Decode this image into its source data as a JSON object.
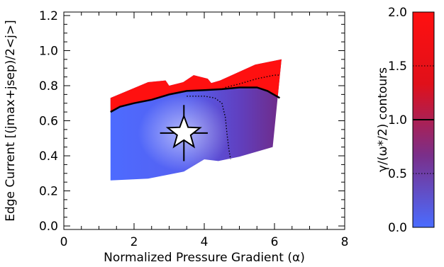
{
  "chart_data": {
    "type": "heatmap",
    "xlabel": "Normalized Pressure Gradient (α)",
    "ylabel": "Edge Current [(jmax+jsep)/2<j>]",
    "xlim": [
      0,
      8
    ],
    "ylim": [
      -0.02,
      1.22
    ],
    "xticks": [
      "0",
      "2",
      "4",
      "6",
      "8"
    ],
    "yticks": [
      "0.0",
      "0.2",
      "0.4",
      "0.6",
      "0.8",
      "1.0",
      "1.2"
    ],
    "grid": false,
    "colorbar": {
      "label": "γ/(ω*/2) contours",
      "range": [
        0,
        2
      ],
      "ticks": [
        "0.0",
        "0.5",
        "1.0",
        "1.5",
        "2.0"
      ],
      "colors": [
        "#4a6cff",
        "#7a2f8a",
        "#e0101a",
        "#ff1010"
      ],
      "contour_styles": {
        "0.5": "dotted",
        "1.0": "solid",
        "1.5": "dotted"
      }
    },
    "region_outline": [
      {
        "x": 1.33,
        "y": 0.26
      },
      {
        "x": 2.4,
        "y": 0.27
      },
      {
        "x": 3.42,
        "y": 0.31
      },
      {
        "x": 4.0,
        "y": 0.38
      },
      {
        "x": 4.4,
        "y": 0.37
      },
      {
        "x": 5.0,
        "y": 0.395
      },
      {
        "x": 5.95,
        "y": 0.45
      },
      {
        "x": 6.2,
        "y": 0.95
      },
      {
        "x": 5.45,
        "y": 0.92
      },
      {
        "x": 4.45,
        "y": 0.83
      },
      {
        "x": 4.2,
        "y": 0.815
      },
      {
        "x": 4.1,
        "y": 0.84
      },
      {
        "x": 3.7,
        "y": 0.86
      },
      {
        "x": 3.4,
        "y": 0.82
      },
      {
        "x": 3.0,
        "y": 0.8
      },
      {
        "x": 2.9,
        "y": 0.83
      },
      {
        "x": 2.4,
        "y": 0.82
      },
      {
        "x": 1.33,
        "y": 0.73
      }
    ],
    "unstable_region_gamma": 2.0,
    "contours": [
      {
        "gamma": 1.0,
        "style": "solid",
        "points": [
          {
            "x": 1.33,
            "y": 0.65
          },
          {
            "x": 1.6,
            "y": 0.68
          },
          {
            "x": 2.0,
            "y": 0.7
          },
          {
            "x": 2.5,
            "y": 0.72
          },
          {
            "x": 3.0,
            "y": 0.75
          },
          {
            "x": 3.5,
            "y": 0.77
          },
          {
            "x": 4.0,
            "y": 0.775
          },
          {
            "x": 4.5,
            "y": 0.78
          },
          {
            "x": 5.0,
            "y": 0.79
          },
          {
            "x": 5.5,
            "y": 0.79
          },
          {
            "x": 5.8,
            "y": 0.77
          },
          {
            "x": 6.15,
            "y": 0.73
          }
        ]
      },
      {
        "gamma": 1.5,
        "style": "dotted",
        "points": [
          {
            "x": 4.6,
            "y": 0.79
          },
          {
            "x": 5.0,
            "y": 0.81
          },
          {
            "x": 5.5,
            "y": 0.84
          },
          {
            "x": 6.0,
            "y": 0.86
          },
          {
            "x": 6.15,
            "y": 0.86
          }
        ]
      },
      {
        "gamma": 0.5,
        "style": "dotted",
        "points": [
          {
            "x": 3.5,
            "y": 0.74
          },
          {
            "x": 4.0,
            "y": 0.74
          },
          {
            "x": 4.3,
            "y": 0.73
          },
          {
            "x": 4.5,
            "y": 0.7
          },
          {
            "x": 4.6,
            "y": 0.62
          },
          {
            "x": 4.65,
            "y": 0.52
          },
          {
            "x": 4.7,
            "y": 0.44
          },
          {
            "x": 4.75,
            "y": 0.38
          }
        ]
      }
    ],
    "marker": {
      "shape": "star",
      "x": 3.42,
      "y": 0.53,
      "xerr": 0.68,
      "yerr": 0.16
    }
  }
}
